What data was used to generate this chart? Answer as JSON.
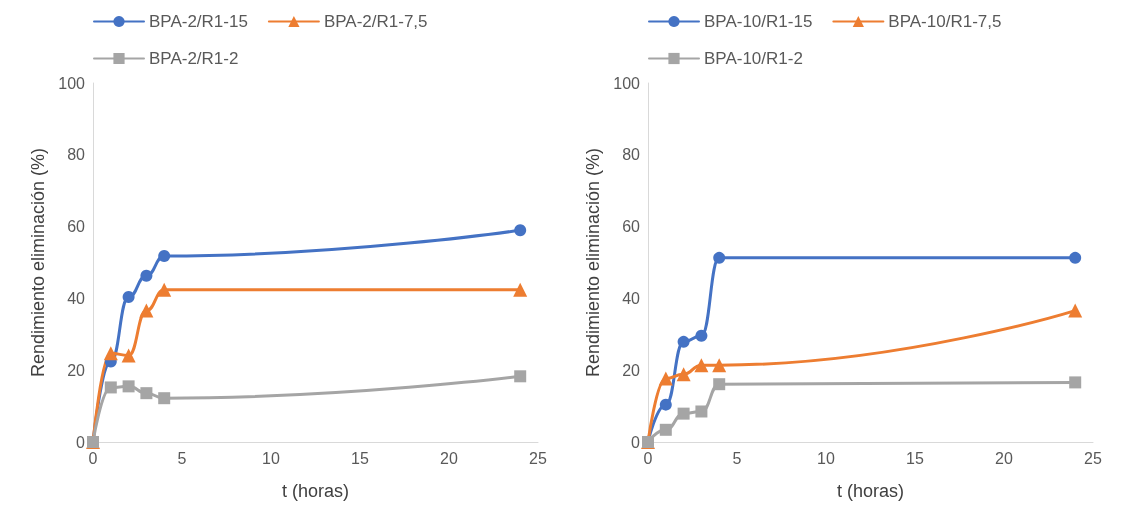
{
  "chart_data": [
    {
      "type": "line",
      "xlabel": "t (horas)",
      "ylabel": "Rendimiento eliminación (%)",
      "xlim": [
        0,
        25
      ],
      "xticks": [
        0,
        5,
        10,
        15,
        20,
        25
      ],
      "ylim": [
        0,
        100
      ],
      "yticks": [
        0,
        20,
        40,
        60,
        80,
        100
      ],
      "grid": false,
      "legend": "top",
      "x": [
        0,
        1,
        2,
        3,
        4,
        24
      ],
      "series": [
        {
          "name": "BPA-2/R1-15",
          "color": "#4472c4",
          "marker": "circle",
          "values": [
            0,
            22.4,
            40.4,
            46.3,
            51.8,
            59
          ]
        },
        {
          "name": "BPA-2/R1-7,5",
          "color": "#ed7d31",
          "marker": "triangle",
          "values": [
            0,
            24.7,
            24.1,
            36.6,
            42.4,
            42.4
          ]
        },
        {
          "name": "BPA-2/R1-2",
          "color": "#a5a5a5",
          "marker": "square",
          "values": [
            0,
            15.2,
            15.5,
            13.6,
            12.2,
            18.3
          ]
        }
      ]
    },
    {
      "type": "line",
      "xlabel": "t (horas)",
      "ylabel": "Rendimiento eliminación (%)",
      "xlim": [
        0,
        25
      ],
      "xticks": [
        0,
        5,
        10,
        15,
        20,
        25
      ],
      "ylim": [
        0,
        100
      ],
      "yticks": [
        0,
        20,
        40,
        60,
        80,
        100
      ],
      "grid": false,
      "legend": "top",
      "x": [
        0,
        1,
        2,
        3,
        4,
        24
      ],
      "series": [
        {
          "name": "BPA-10/R1-15",
          "color": "#4472c4",
          "marker": "circle",
          "values": [
            0,
            10.4,
            27.9,
            29.6,
            51.3,
            51.3
          ]
        },
        {
          "name": "BPA-10/R1-7,5",
          "color": "#ed7d31",
          "marker": "triangle",
          "values": [
            0,
            17.7,
            18.9,
            21.4,
            21.4,
            36.6
          ]
        },
        {
          "name": "BPA-10/R1-2",
          "color": "#a5a5a5",
          "marker": "square",
          "values": [
            0,
            3.4,
            7.9,
            8.5,
            16.1,
            16.6
          ]
        }
      ]
    }
  ]
}
